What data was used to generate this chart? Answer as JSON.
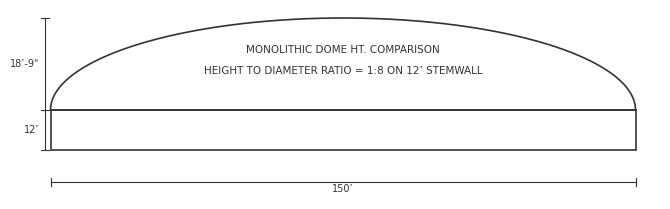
{
  "title_line1": "MONOLITHIC DOME HT. COMPARISON",
  "title_line2": "HEIGHT TO DIAMETER RATIO = 1:8 ON 12’ STEMWALL",
  "label_height": "18’-9\"",
  "label_stemwall": "12’",
  "label_width": "150’",
  "bg_color": "#ffffff",
  "line_color": "#333333",
  "text_color": "#333333",
  "title_fontsize": 7.5,
  "label_fontsize": 7.0
}
